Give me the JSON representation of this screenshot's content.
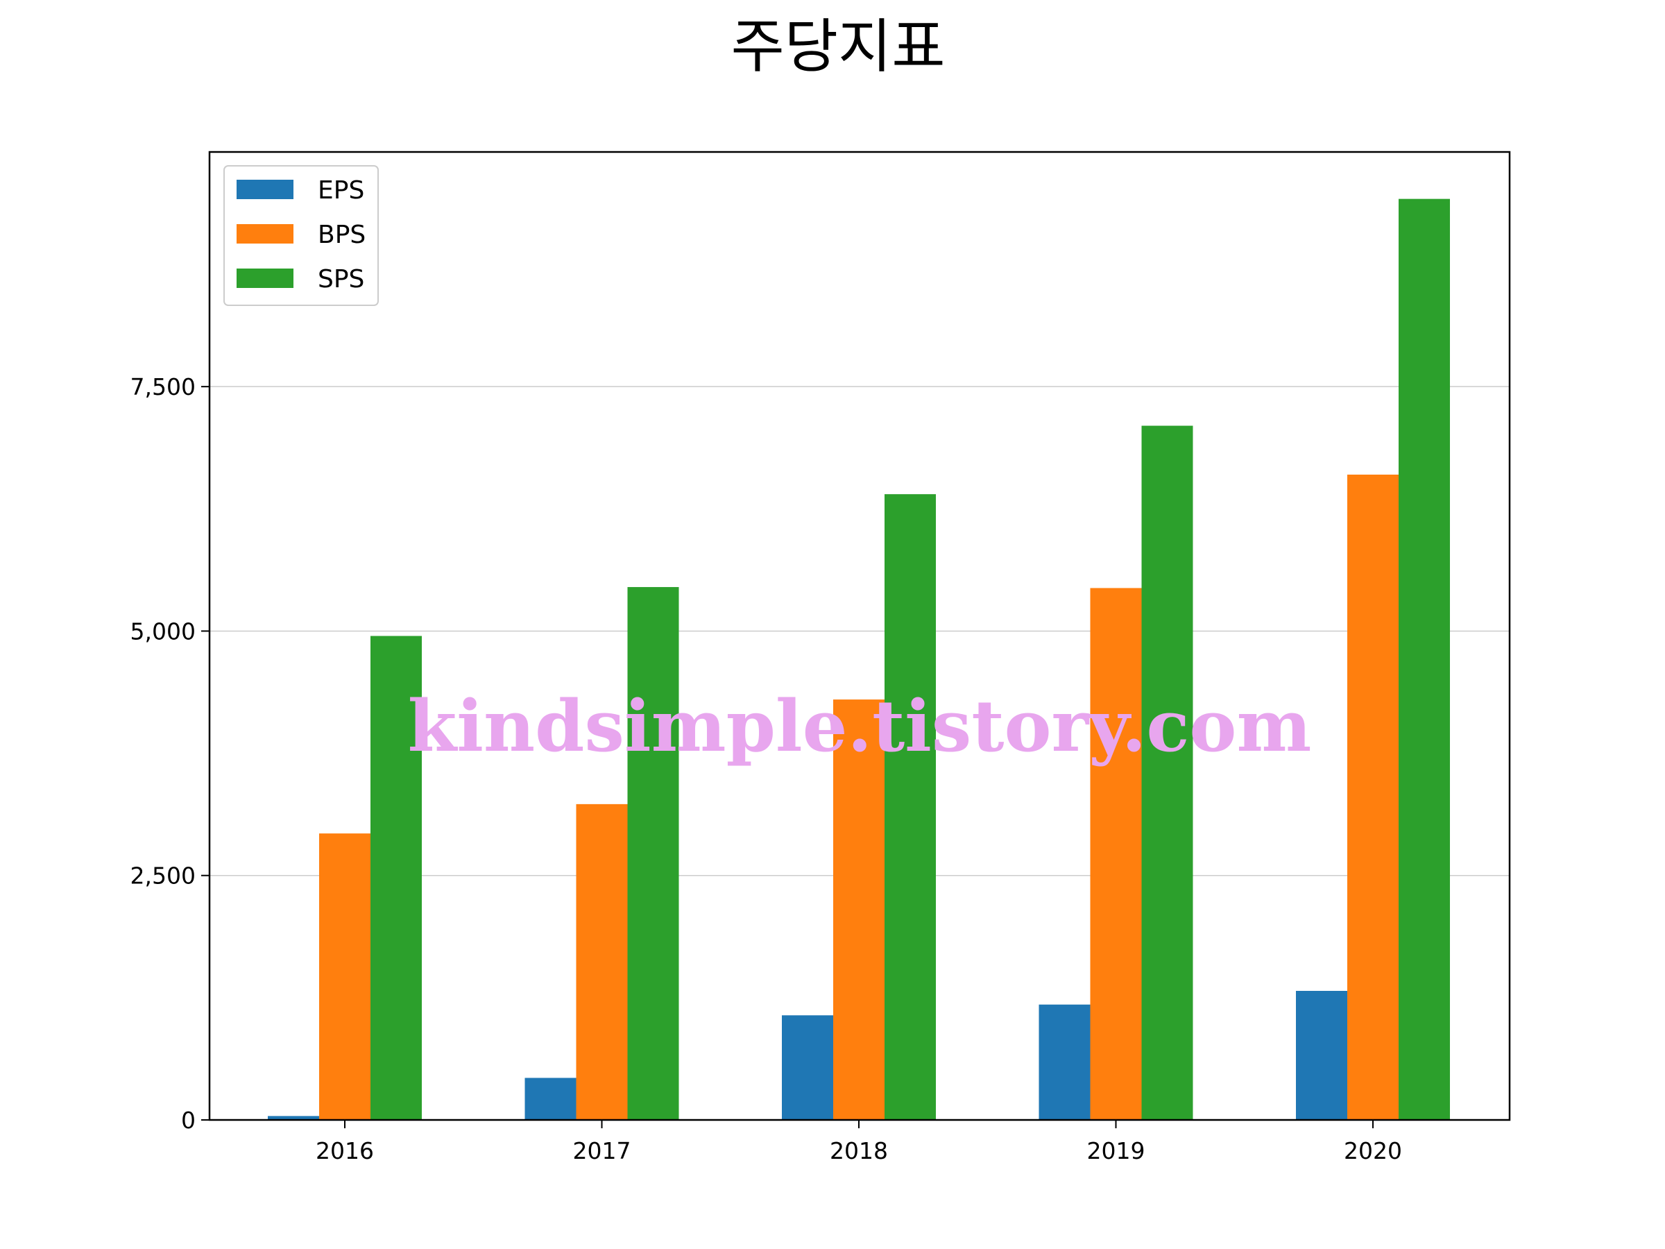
{
  "chart_data": {
    "type": "bar",
    "title": "주당지표",
    "xlabel": "",
    "ylabel": "",
    "categories": [
      "2016",
      "2017",
      "2018",
      "2019",
      "2020"
    ],
    "series": [
      {
        "name": "EPS",
        "color": "#1f77b4",
        "values": [
          40,
          430,
          1070,
          1180,
          1320
        ]
      },
      {
        "name": "BPS",
        "color": "#ff7f0e",
        "values": [
          2930,
          3230,
          4300,
          5440,
          6600
        ]
      },
      {
        "name": "SPS",
        "color": "#2ca02c",
        "values": [
          4950,
          5450,
          6400,
          7100,
          9420
        ]
      }
    ],
    "ylim": [
      0,
      9900
    ],
    "yticks": [
      0,
      2500,
      5000,
      7500
    ],
    "ytick_labels": [
      "0",
      "2,500",
      "5,000",
      "7,500"
    ],
    "grid": "y",
    "legend_position": "upper-left",
    "watermark": "kindsimple.tistory.com"
  }
}
